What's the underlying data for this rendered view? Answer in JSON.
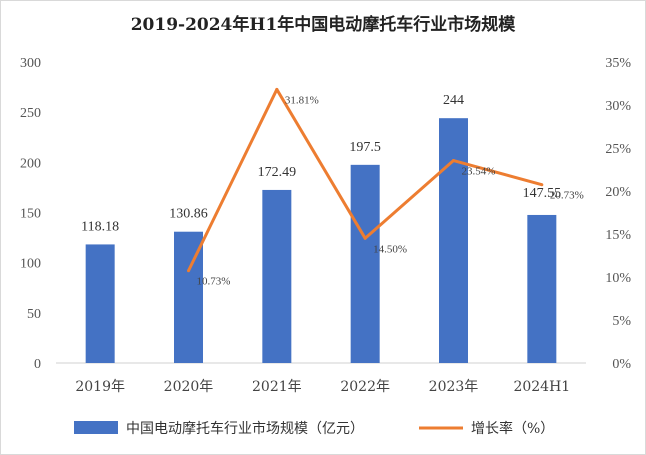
{
  "chart_data": {
    "type": "bar",
    "title": "2019-2024年H1年中国电动摩托车行业市场规模",
    "categories": [
      "2019年",
      "2020年",
      "2021年",
      "2022年",
      "2023年",
      "2024H1"
    ],
    "series": [
      {
        "name": "中国电动摩托车行业市场规模（亿元）",
        "type": "bar",
        "axis": "left",
        "color": "#4472C4",
        "values": [
          118.18,
          130.86,
          172.49,
          197.5,
          244,
          147.55
        ],
        "labels": [
          "118.18",
          "130.86",
          "172.49",
          "197.5",
          "244",
          "147.55"
        ]
      },
      {
        "name": "增长率（%）",
        "type": "line",
        "axis": "right",
        "color": "#ED7D31",
        "points": [
          {
            "category": "2020年",
            "value": 10.73,
            "label": "10.73%"
          },
          {
            "category": "2021年",
            "value": 31.81,
            "label": "31.81%"
          },
          {
            "category": "2022年",
            "value": 14.5,
            "label": "14.50%"
          },
          {
            "category": "2023年",
            "value": 23.54,
            "label": "23.54%"
          },
          {
            "category": "2024H1",
            "value": 20.73,
            "label": "20.73%"
          }
        ]
      }
    ],
    "y_left": {
      "min": 0,
      "max": 300,
      "ticks": [
        "0",
        "50",
        "100",
        "150",
        "200",
        "250",
        "300"
      ]
    },
    "y_right": {
      "min": 0,
      "max": 35,
      "ticks": [
        "0%",
        "5%",
        "10%",
        "15%",
        "20%",
        "25%",
        "30%",
        "35%"
      ]
    },
    "grid": false,
    "legend_position": "bottom"
  }
}
